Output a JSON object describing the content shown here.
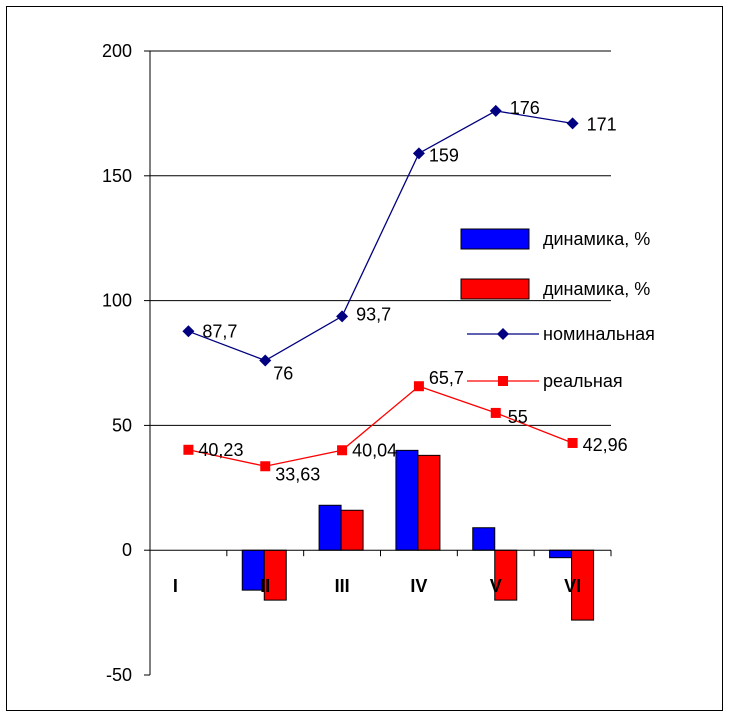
{
  "chart_data": {
    "type": "bar",
    "categories": [
      "I",
      "II",
      "III",
      "IV",
      "V",
      "VI"
    ],
    "ylim": [
      -50,
      200
    ],
    "yticks": [
      -50,
      0,
      50,
      100,
      150,
      200
    ],
    "grid": "horizontal",
    "legend_position": "right",
    "bar_series": [
      {
        "name": "динамика, %",
        "color": "#0000ff",
        "values": [
          0,
          -16,
          18,
          40,
          9,
          -3
        ]
      },
      {
        "name": "динамика, %",
        "color": "#ff0000",
        "values": [
          0,
          -20,
          16,
          38,
          -20,
          -28
        ]
      }
    ],
    "line_series": [
      {
        "name": "номинальная",
        "color": "#000080",
        "marker": "diamond",
        "values": [
          87.7,
          76,
          93.7,
          159,
          176,
          171
        ],
        "labels": [
          "87,7",
          "76",
          "93,7",
          "159",
          "176",
          "171"
        ]
      },
      {
        "name": "реальная",
        "color": "#ff0000",
        "marker": "square",
        "values": [
          40.23,
          33.63,
          40.04,
          65.7,
          55,
          42.96
        ],
        "labels": [
          "40,23",
          "33,63",
          "40,04",
          "65,7",
          "55",
          "42,96"
        ]
      }
    ]
  }
}
